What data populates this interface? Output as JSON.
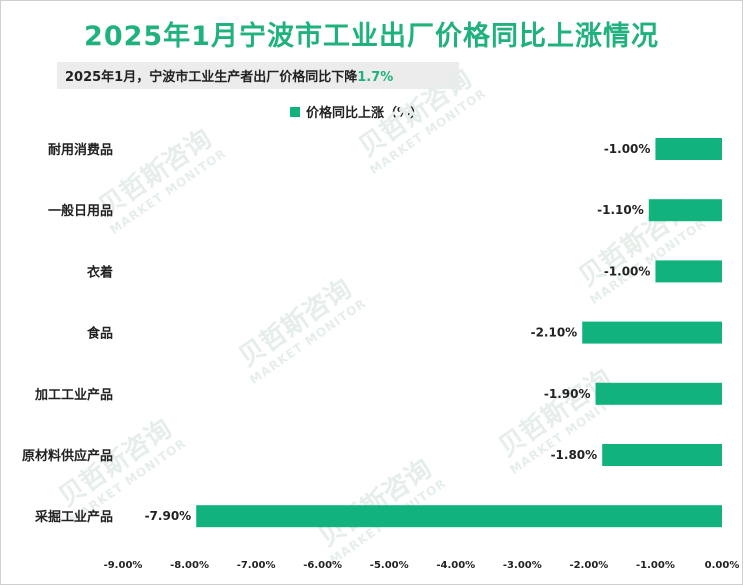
{
  "title": "2025年1月宁波市工业出厂价格同比上涨情况",
  "subtitle": {
    "text": "2025年1月，宁波市工业生产者出厂价格同比下降",
    "highlight": "1.7%"
  },
  "watermark": {
    "cn": "贝哲斯咨询",
    "en": "MARKET MONITOR"
  },
  "colors": {
    "bar": "#12b27e",
    "title": "#20b27c"
  },
  "chart_data": {
    "type": "bar",
    "orientation": "horizontal",
    "categories": [
      "耐用消费品",
      "一般日用品",
      "衣着",
      "食品",
      "加工工业产品",
      "原材料供应产品",
      "采掘工业产品"
    ],
    "series": [
      {
        "name": "价格同比上涨（%）",
        "values": [
          -1.0,
          -1.1,
          -1.0,
          -2.1,
          -1.9,
          -1.8,
          -7.9
        ],
        "labels": [
          "-1.00%",
          "-1.10%",
          "-1.00%",
          "-2.10%",
          "-1.90%",
          "-1.80%",
          "-7.90%"
        ]
      }
    ],
    "xlim": [
      -9.0,
      0.0
    ],
    "xticks": [
      "-9.00%",
      "-8.00%",
      "-7.00%",
      "-6.00%",
      "-5.00%",
      "-4.00%",
      "-3.00%",
      "-2.00%",
      "-1.00%",
      "0.00%"
    ],
    "legend": "top-center",
    "grid": false
  }
}
